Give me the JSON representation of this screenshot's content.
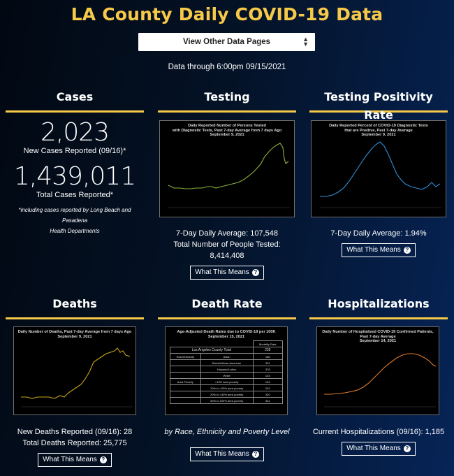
{
  "title": "LA County Daily COVID-19 Data",
  "nav": {
    "select_label": "View Other Data Pages"
  },
  "data_through": "Data through 6:00pm 09/15/2021",
  "what_this_means": "What This Means",
  "cases": {
    "heading": "Cases",
    "new_count": "2,023",
    "new_label": "New Cases Reported (09/16)*",
    "total_count": "1,439,011",
    "total_label": "Total Cases Reported*",
    "footnote_line1": "*including cases reported by Long Beach and Pasadena",
    "footnote_line2": "Health Departments"
  },
  "testing": {
    "heading": "Testing",
    "chart_title_1": "Daily Reported Number of Persons Tested",
    "chart_title_2": "with Diagnostic Tests, Past 7-day Average from 7 days Ago",
    "chart_title_3": "September 9, 2021",
    "stat1": "7-Day Daily Average: 107,548",
    "stat2": "Total Number of People Tested: 8,414,408"
  },
  "positivity": {
    "heading": "Testing Positivity Rate",
    "chart_title_1": "Daily Reported Percent of COVID-19 Diagnostic Tests",
    "chart_title_2": "that are Positive, Past 7-day Average",
    "chart_title_3": "September 9, 2021",
    "stat1": "7-Day Daily Average: 1.94%"
  },
  "deaths": {
    "heading": "Deaths",
    "chart_title_1": "Daily Number of Deaths, Past 7-day Average from 7 days Ago",
    "chart_title_2": "September 9, 2021",
    "stat1": "New Deaths Reported (09/16): 28",
    "stat2": "Total Deaths Reported: 25,775"
  },
  "death_rate": {
    "heading": "Death Rate",
    "chart_title_1": "Age-Adjusted Death Rates due to COVID-19 per 100K",
    "chart_title_2": "September 15, 2021",
    "col_header": "Mortality Rate",
    "total_label": "Los Angeles County Total",
    "total_value": "235",
    "rows": [
      {
        "group": "Race/Ethnicity",
        "label": "Asian",
        "value": "166"
      },
      {
        "group": "",
        "label": "Black/African American",
        "value": "331"
      },
      {
        "group": "",
        "label": "Hispanic/Latino",
        "value": "378"
      },
      {
        "group": "",
        "label": "White",
        "value": "133"
      },
      {
        "group": "Area Poverty",
        "label": "<10% area poverty",
        "value": "134"
      },
      {
        "group": "",
        "label": "10% to <20% area poverty",
        "value": "242"
      },
      {
        "group": "",
        "label": "20% to <30% area poverty",
        "value": "320"
      },
      {
        "group": "",
        "label": "30% to 100% area poverty",
        "value": "431"
      }
    ],
    "caption": "by Race, Ethnicity and Poverty Level"
  },
  "hospitalizations": {
    "heading": "Hospitalizations",
    "chart_title_1": "Daily Number of Hospitalized COVID-19 Confirmed Patients,",
    "chart_title_2": "Past 7-day Average",
    "chart_title_3": "September 14, 2021",
    "stat1": "Current Hospitalizations (09/16): 1,185"
  },
  "colors": {
    "accent": "#f7c948",
    "testing_line": "#8db33a",
    "positivity_line": "#2f8fd6",
    "deaths_line": "#c8a51e",
    "hosp_line": "#e07b2a"
  }
}
